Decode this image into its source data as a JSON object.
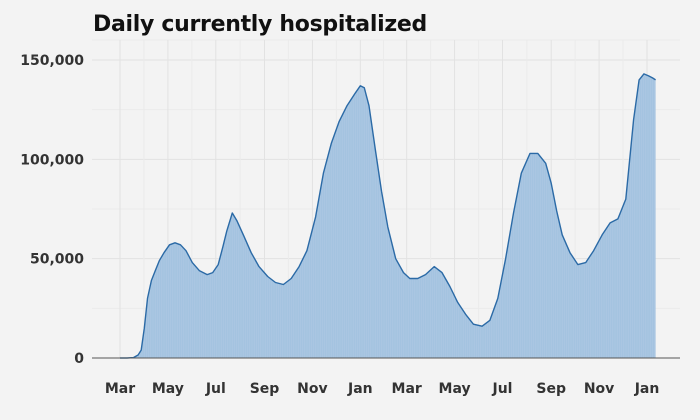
{
  "chart_data": {
    "type": "area",
    "title": "Daily currently hospitalized",
    "xlabel": "",
    "ylabel": "",
    "x_tick_labels": [
      "Mar",
      "May",
      "Jul",
      "Sep",
      "Nov",
      "Jan",
      "Mar",
      "May",
      "Jul",
      "Sep",
      "Nov",
      "Jan"
    ],
    "y_tick_labels": [
      "0",
      "50,000",
      "100,000",
      "150,000"
    ],
    "y_ticks": [
      0,
      50000,
      100000,
      150000
    ],
    "ylim": [
      0,
      155000
    ],
    "grid": true,
    "colors": {
      "fill": "#a4c3e0",
      "line": "#2b6aa6",
      "axis": "#555555",
      "grid": "#e2e2e2"
    },
    "series": [
      {
        "x": [
          "2020-03-01",
          "2020-03-10",
          "2020-03-18",
          "2020-03-24",
          "2020-03-28",
          "2020-04-01",
          "2020-04-05",
          "2020-04-10",
          "2020-04-15",
          "2020-04-20",
          "2020-04-26",
          "2020-05-03",
          "2020-05-10",
          "2020-05-17",
          "2020-05-24",
          "2020-06-01",
          "2020-06-10",
          "2020-06-20",
          "2020-06-27",
          "2020-07-04",
          "2020-07-10",
          "2020-07-15",
          "2020-07-22",
          "2020-07-28",
          "2020-08-05",
          "2020-08-15",
          "2020-08-25",
          "2020-09-05",
          "2020-09-15",
          "2020-09-25",
          "2020-10-05",
          "2020-10-15",
          "2020-10-25",
          "2020-11-05",
          "2020-11-15",
          "2020-11-25",
          "2020-12-05",
          "2020-12-15",
          "2020-12-25",
          "2021-01-01",
          "2021-01-06",
          "2021-01-12",
          "2021-01-20",
          "2021-01-28",
          "2021-02-05",
          "2021-02-15",
          "2021-02-25",
          "2021-03-05",
          "2021-03-15",
          "2021-03-25",
          "2021-04-05",
          "2021-04-15",
          "2021-04-25",
          "2021-05-05",
          "2021-05-15",
          "2021-05-25",
          "2021-06-05",
          "2021-06-15",
          "2021-06-25",
          "2021-07-05",
          "2021-07-15",
          "2021-07-25",
          "2021-08-05",
          "2021-08-15",
          "2021-08-25",
          "2021-09-01",
          "2021-09-08",
          "2021-09-15",
          "2021-09-25",
          "2021-10-05",
          "2021-10-15",
          "2021-10-25",
          "2021-11-05",
          "2021-11-15",
          "2021-11-25",
          "2021-12-05",
          "2021-12-15",
          "2021-12-22",
          "2021-12-28",
          "2022-01-03",
          "2022-01-08",
          "2022-01-12"
        ],
        "values": [
          0,
          0,
          200,
          1500,
          4000,
          15000,
          30000,
          39000,
          44000,
          49000,
          53000,
          57000,
          58000,
          57000,
          54000,
          48000,
          44000,
          42000,
          43000,
          47000,
          56000,
          64000,
          73000,
          69000,
          62000,
          53000,
          46000,
          41000,
          38000,
          37000,
          40000,
          46000,
          54000,
          71000,
          93000,
          108000,
          119000,
          127000,
          133000,
          137000,
          136000,
          127000,
          105000,
          84000,
          66000,
          50000,
          43000,
          40000,
          40000,
          42000,
          46000,
          43000,
          36000,
          28000,
          22000,
          17000,
          16000,
          19000,
          30000,
          50000,
          73000,
          93000,
          103000,
          103000,
          98000,
          88000,
          74000,
          62000,
          53000,
          47000,
          48000,
          54000,
          62000,
          68000,
          70000,
          80000,
          120000,
          140000,
          143000,
          142000,
          141000,
          140000
        ]
      }
    ]
  }
}
